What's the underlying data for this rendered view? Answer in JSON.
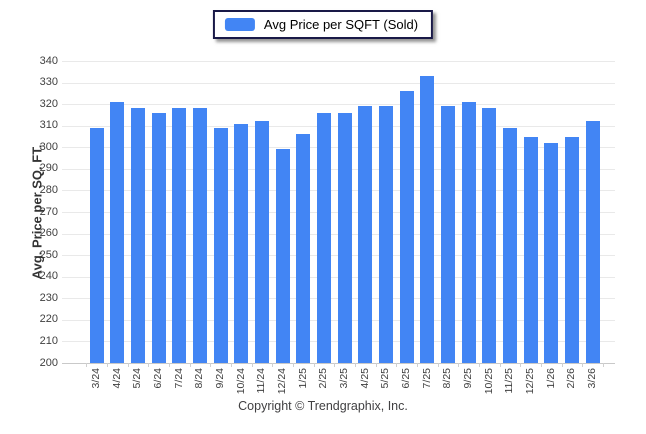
{
  "legend": {
    "label": "Avg Price per SQFT (Sold)",
    "swatch_color": "#4285f4"
  },
  "footer": {
    "copyright": "Copyright © Trendgraphix, Inc."
  },
  "chart_data": {
    "type": "bar",
    "title": "",
    "xlabel": "",
    "ylabel": "Avg. Price per SQ. FT.",
    "categories": [
      "3/24",
      "4/24",
      "5/24",
      "6/24",
      "7/24",
      "8/24",
      "9/24",
      "10/24",
      "11/24",
      "12/24",
      "1/25",
      "2/25",
      "3/25",
      "4/25",
      "5/25",
      "6/25",
      "7/25",
      "8/25",
      "9/25",
      "10/25",
      "11/25",
      "12/25",
      "1/26",
      "2/26",
      "3/26"
    ],
    "series": [
      {
        "name": "Avg Price per SQFT (Sold)",
        "color": "#4285f4",
        "values": [
          309,
          321,
          318,
          316,
          318,
          318,
          309,
          311,
          312,
          299,
          306,
          316,
          316,
          319,
          319,
          326,
          333,
          319,
          321,
          318,
          309,
          305,
          302,
          305,
          312
        ]
      }
    ],
    "ylim": [
      200,
      340
    ],
    "yticks": [
      200,
      210,
      220,
      230,
      240,
      250,
      260,
      270,
      280,
      290,
      300,
      310,
      320,
      330,
      340
    ],
    "grid": true,
    "legend_position": "top-center"
  }
}
